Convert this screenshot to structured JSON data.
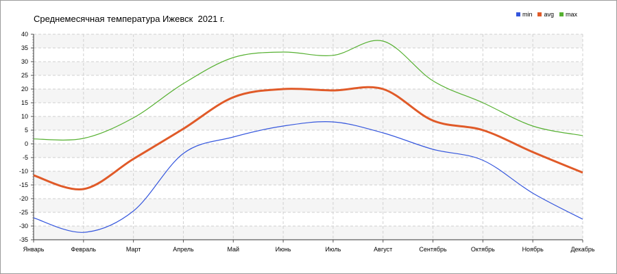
{
  "chart_data": {
    "type": "line",
    "title": "Среднемесячная температура Ижевск  2021 г.",
    "xlabel": "",
    "ylabel": "",
    "ylim": [
      -35,
      40
    ],
    "yticks": [
      -35,
      -30,
      -25,
      -20,
      -15,
      -10,
      -5,
      0,
      5,
      10,
      15,
      20,
      25,
      30,
      35,
      40
    ],
    "categories": [
      "Январь",
      "Февраль",
      "Март",
      "Апрель",
      "Май",
      "Июнь",
      "Июль",
      "Август",
      "Сентябрь",
      "Октябрь",
      "Ноябрь",
      "Декабрь"
    ],
    "series": [
      {
        "name": "min",
        "color": "#3355dd",
        "values": [
          -27,
          -32.3,
          -24.5,
          -3.5,
          2.5,
          6.5,
          8,
          4,
          -2,
          -6,
          -18,
          -27.5
        ]
      },
      {
        "name": "avg",
        "color": "#e05a28",
        "values": [
          -11.5,
          -16.5,
          -5.5,
          5.5,
          17,
          20,
          19.5,
          20,
          8.5,
          5,
          -3,
          -10.5
        ]
      },
      {
        "name": "max",
        "color": "#55b030",
        "values": [
          1.8,
          2,
          9.5,
          22,
          31.5,
          33.5,
          32.3,
          37.5,
          23,
          15,
          6.5,
          3
        ]
      }
    ],
    "grid": true,
    "legend_position": "top-right"
  }
}
